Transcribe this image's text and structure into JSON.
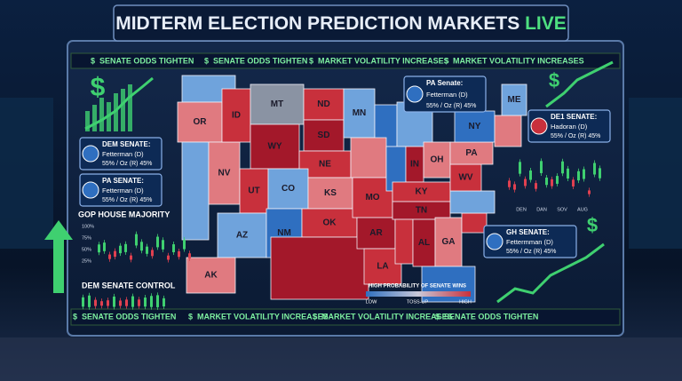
{
  "title": {
    "text": "MIDTERM ELECTION PREDICTION MARKETS",
    "highlight": "LIVE"
  },
  "currency_symbol": "$",
  "ticker_top": [
    "SENATE ODDS TIGHTEN",
    "SENATE ODDS TIGHTEN",
    "MARKET VOLATILITY INCREASES",
    "MARKET VOLATILITY INCREASES"
  ],
  "ticker_bottom": [
    "SENATE ODDS TIGHTEN",
    "MARKET VOLATILITY INCREASES",
    "MARKET VOLATILITY INCREASES",
    "SENATE ODDS TIGHTEN"
  ],
  "cards": [
    {
      "heading": "DEM SENATE:",
      "candidate": "Fetterman (D)",
      "odds": "55% / Oz (R) 45%"
    },
    {
      "heading": "PA SENATE:",
      "candidate": "Fetterman (D)",
      "odds": "55% / Oz (R) 45%"
    },
    {
      "heading": "PA Senate:",
      "candidate": "Fetterman (D)",
      "odds": "55% / Oz (R) 45%"
    },
    {
      "heading": "DE1 SENATE:",
      "candidate": "Hadoran (D)",
      "odds": "55% / Oz (R) 45%"
    },
    {
      "heading": "GH SENATE:",
      "candidate": "Fettermman (D)",
      "odds": "55% / Oz (R) 45%"
    }
  ],
  "left_panel": {
    "house_title": "GOP HOUSE MAJORITY",
    "axis_labels": [
      "100%",
      "75%",
      "50%",
      "25%"
    ],
    "senate_title": "DEM SENATE CONTROL"
  },
  "right_chart": {
    "axis_labels": [
      "DEN",
      "DAN",
      "SOV",
      "AUG"
    ]
  },
  "legend": {
    "title": "HIGH PROBABILITY OF SENATE WINS",
    "labels": [
      "LOW",
      "TOSS-UP",
      "HIGH"
    ]
  },
  "map": {
    "states": [
      "OR",
      "ID",
      "MT",
      "WY",
      "ND",
      "SD",
      "MN",
      "NE",
      "NV",
      "UT",
      "CO",
      "KS",
      "MO",
      "AZ",
      "NM",
      "OK",
      "AR",
      "LA",
      "AL",
      "GA",
      "TN",
      "KY",
      "IN",
      "OH",
      "WV",
      "PA",
      "NY",
      "ME",
      "AK"
    ]
  }
}
